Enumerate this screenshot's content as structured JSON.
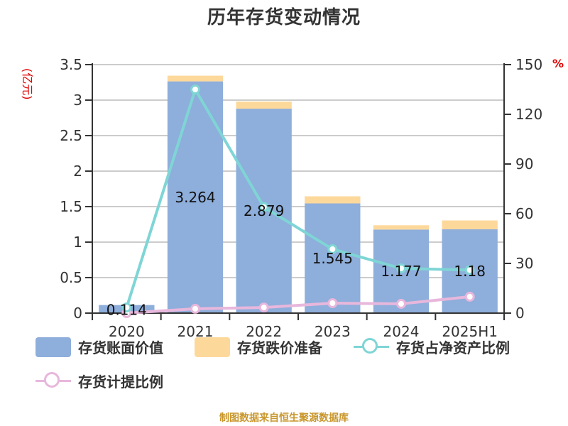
{
  "title": "历年存货变动情况",
  "footer": "制图数据来自恒生聚源数据库",
  "colors": {
    "book_value": "#8eaedb",
    "impairment": "#fdd89b",
    "net_asset_ratio": "#7fd5d5",
    "provision_ratio": "#e8b7dc",
    "axis": "#333333",
    "grid": "#cccccc",
    "unit": "#e00000",
    "footer": "#c8962b"
  },
  "axes": {
    "left_unit": "(亿元)",
    "right_unit": "%"
  },
  "legend": [
    {
      "label": "存货账面价值",
      "type": "bar"
    },
    {
      "label": "存货跌价准备",
      "type": "bar"
    },
    {
      "label": "存货占净资产比例",
      "type": "line"
    },
    {
      "label": "存货计提比例",
      "type": "line"
    }
  ],
  "chart_data": {
    "type": "bar",
    "title": "历年存货变动情况",
    "categories": [
      "2020",
      "2021",
      "2022",
      "2023",
      "2024",
      "2025H1"
    ],
    "series": [
      {
        "name": "存货账面价值",
        "type": "bar",
        "stack": "inv",
        "axis": "left",
        "values": [
          0.114,
          3.264,
          2.879,
          1.545,
          1.177,
          1.18
        ],
        "labels": [
          "0.114",
          "3.264",
          "2.879",
          "1.545",
          "1.177",
          "1.18"
        ]
      },
      {
        "name": "存货跌价准备",
        "type": "bar",
        "stack": "inv",
        "axis": "left",
        "values": [
          0.0,
          0.08,
          0.1,
          0.1,
          0.06,
          0.125
        ]
      },
      {
        "name": "存货占净资产比例",
        "type": "line",
        "axis": "right",
        "values": [
          3.4,
          135,
          64,
          38.6,
          27,
          26
        ]
      },
      {
        "name": "存货计提比例",
        "type": "line",
        "axis": "right",
        "values": [
          0,
          2.6,
          3.4,
          6.0,
          5.6,
          9.9
        ]
      }
    ],
    "xlabel": "",
    "ylabel": "(亿元)",
    "ylabel_right": "%",
    "ylim": [
      0,
      3.5
    ],
    "yticks": [
      "0",
      "0.5",
      "1",
      "1.5",
      "2",
      "2.5",
      "3",
      "3.5"
    ],
    "ylim_right": [
      0,
      150
    ],
    "yticks_right": [
      "0",
      "30",
      "60",
      "90",
      "120",
      "150"
    ],
    "grid": true,
    "legend_position": "bottom"
  }
}
